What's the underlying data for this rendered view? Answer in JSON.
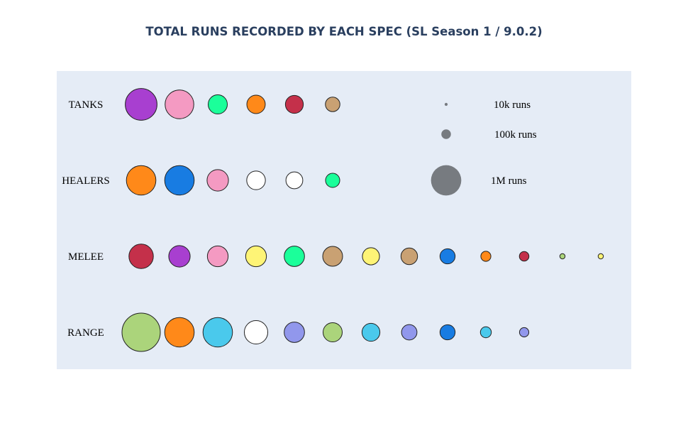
{
  "chart_data": {
    "type": "scatter",
    "title": "TOTAL RUNS RECORDED BY EACH SPEC (SL Season 1 / 9.0.2)",
    "plot_background": "#e5ecf6",
    "categories": [
      "TANKS",
      "HEALERS",
      "MELEE",
      "RANGE"
    ],
    "series": [
      {
        "category": "TANKS",
        "points": [
          {
            "rank": 1,
            "color": "#a83fd0",
            "runs": 1100000
          },
          {
            "rank": 2,
            "color": "#f49ac2",
            "runs": 900000
          },
          {
            "rank": 3,
            "color": "#1bff9a",
            "runs": 400000
          },
          {
            "rank": 4,
            "color": "#ff8919",
            "runs": 370000
          },
          {
            "rank": 5,
            "color": "#c4304a",
            "runs": 350000
          },
          {
            "rank": 6,
            "color": "#c9a173",
            "runs": 230000
          }
        ]
      },
      {
        "category": "HEALERS",
        "points": [
          {
            "rank": 1,
            "color": "#ff8919",
            "runs": 950000
          },
          {
            "rank": 2,
            "color": "#187ce2",
            "runs": 950000
          },
          {
            "rank": 3,
            "color": "#f49ac2",
            "runs": 500000
          },
          {
            "rank": 4,
            "color": "#ffffff",
            "runs": 380000
          },
          {
            "rank": 5,
            "color": "#ffffff",
            "runs": 310000
          },
          {
            "rank": 6,
            "color": "#1bff9a",
            "runs": 220000
          }
        ]
      },
      {
        "category": "MELEE",
        "points": [
          {
            "rank": 1,
            "color": "#c4304a",
            "runs": 650000
          },
          {
            "rank": 2,
            "color": "#a83fd0",
            "runs": 500000
          },
          {
            "rank": 3,
            "color": "#f49ac2",
            "runs": 470000
          },
          {
            "rank": 4,
            "color": "#fef476",
            "runs": 470000
          },
          {
            "rank": 5,
            "color": "#1bff9a",
            "runs": 450000
          },
          {
            "rank": 6,
            "color": "#c9a173",
            "runs": 430000
          },
          {
            "rank": 7,
            "color": "#fef476",
            "runs": 320000
          },
          {
            "rank": 8,
            "color": "#c9a173",
            "runs": 300000
          },
          {
            "rank": 9,
            "color": "#187ce2",
            "runs": 250000
          },
          {
            "rank": 10,
            "color": "#ff8919",
            "runs": 110000
          },
          {
            "rank": 11,
            "color": "#c4304a",
            "runs": 100000
          },
          {
            "rank": 12,
            "color": "#abd47b",
            "runs": 30000
          },
          {
            "rank": 13,
            "color": "#fef476",
            "runs": 30000
          }
        ]
      },
      {
        "category": "RANGE",
        "points": [
          {
            "rank": 1,
            "color": "#abd47b",
            "runs": 1600000
          },
          {
            "rank": 2,
            "color": "#ff8919",
            "runs": 950000
          },
          {
            "rank": 3,
            "color": "#4ac9ec",
            "runs": 950000
          },
          {
            "rank": 4,
            "color": "#ffffff",
            "runs": 600000
          },
          {
            "rank": 5,
            "color": "#9197ec",
            "runs": 450000
          },
          {
            "rank": 6,
            "color": "#abd47b",
            "runs": 400000
          },
          {
            "rank": 7,
            "color": "#4ac9ec",
            "runs": 350000
          },
          {
            "rank": 8,
            "color": "#9197ec",
            "runs": 260000
          },
          {
            "rank": 9,
            "color": "#187ce2",
            "runs": 250000
          },
          {
            "rank": 10,
            "color": "#4ac9ec",
            "runs": 130000
          },
          {
            "rank": 11,
            "color": "#9197ec",
            "runs": 95000
          }
        ]
      }
    ],
    "legend": {
      "placement": "top-right",
      "marker_color": "#777b80",
      "items": [
        {
          "label": "10k runs",
          "runs": 10000
        },
        {
          "label": "100k runs",
          "runs": 100000
        },
        {
          "label": "1M runs",
          "runs": 1000000
        }
      ]
    },
    "grid": false
  }
}
